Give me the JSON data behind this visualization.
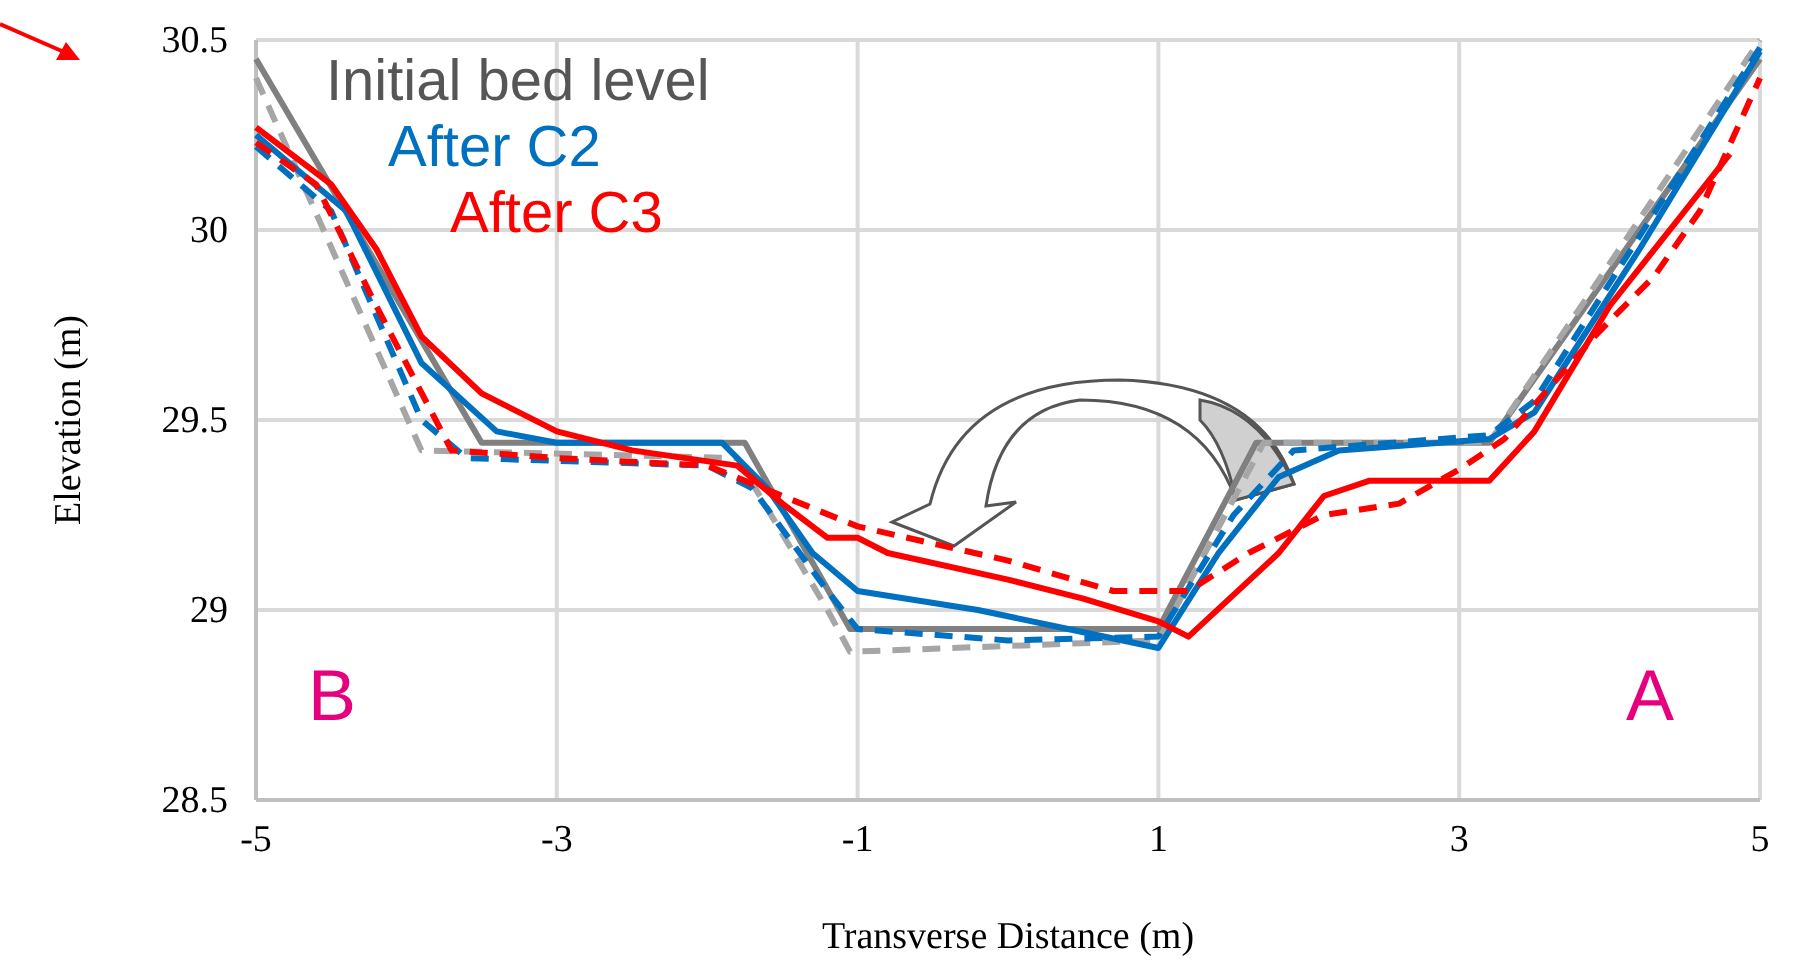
{
  "chart_data": {
    "type": "line",
    "xlabel": "Transverse Distance (m)",
    "ylabel": "Elevation (m)",
    "xlim": [
      -5,
      5
    ],
    "xticks": [
      -5,
      -3,
      -1,
      1,
      3,
      5
    ],
    "ylim": [
      28.5,
      30.5
    ],
    "yticks": [
      28.5,
      29,
      29.5,
      30,
      30.5
    ],
    "grid": true,
    "legend": "top left",
    "marker": "none",
    "series": [
      {
        "name": "Initial bed level",
        "color": "#808080",
        "line_style": "solid",
        "x": [
          -5,
          -3.5,
          -1.75,
          -1.05,
          1,
          1.65,
          3.2,
          5
        ],
        "values": [
          30.45,
          29.44,
          29.44,
          28.95,
          28.95,
          29.44,
          29.44,
          30.45
        ]
      },
      {
        "color": "#a6a6a6",
        "line_style": "dashed",
        "x": [
          -5,
          -3.9,
          -1.8,
          -1.2,
          -1.05,
          1,
          1.7,
          3.2,
          5
        ],
        "values": [
          30.4,
          29.42,
          29.4,
          29.0,
          28.89,
          28.92,
          29.44,
          29.44,
          30.5
        ]
      },
      {
        "name": "After C2",
        "color": "#0070c0",
        "line_style": "solid",
        "x": [
          -5,
          -4.4,
          -3.9,
          -3.4,
          -3,
          -1.9,
          -1.6,
          -1.3,
          -1,
          -0.2,
          0.4,
          1,
          1.4,
          1.8,
          2.2,
          3.2,
          3.5,
          4.2,
          5
        ],
        "values": [
          30.25,
          30.05,
          29.65,
          29.47,
          29.44,
          29.44,
          29.32,
          29.15,
          29.05,
          29.0,
          28.95,
          28.9,
          29.15,
          29.35,
          29.42,
          29.45,
          29.52,
          29.95,
          30.47
        ]
      },
      {
        "color": "#0070c0",
        "line_style": "dashed",
        "x": [
          -5,
          -4.5,
          -3.9,
          -3.6,
          -2,
          -1.7,
          -1.2,
          -1,
          0,
          1,
          1.5,
          1.9,
          3.2,
          3.5,
          5
        ],
        "values": [
          30.22,
          30.05,
          29.5,
          29.4,
          29.38,
          29.32,
          29.05,
          28.95,
          28.92,
          28.93,
          29.25,
          29.42,
          29.46,
          29.55,
          30.48
        ]
      },
      {
        "name": "After C3",
        "color": "#ff0000",
        "line_style": "solid",
        "x": [
          -5,
          -4.5,
          -4.2,
          -3.9,
          -3.5,
          -3,
          -2.5,
          -1.8,
          -1.5,
          -1.2,
          -1,
          -0.8,
          0,
          0.5,
          1,
          1.2,
          1.8,
          2.1,
          2.4,
          3.2,
          3.5,
          4,
          4.5,
          4.8
        ],
        "values": [
          30.27,
          30.12,
          29.95,
          29.72,
          29.57,
          29.47,
          29.42,
          29.38,
          29.28,
          29.19,
          29.19,
          29.15,
          29.08,
          29.03,
          28.97,
          28.93,
          29.15,
          29.3,
          29.34,
          29.34,
          29.47,
          29.8,
          30.05,
          30.2
        ]
      },
      {
        "color": "#ff0000",
        "line_style": "dashed",
        "x": [
          -5,
          -4.6,
          -4.2,
          -3.7,
          -3,
          -2,
          -1.5,
          -1,
          0,
          0.7,
          1.2,
          1.6,
          2.1,
          2.6,
          3,
          3.3,
          3.9,
          4.3,
          4.6,
          5
        ],
        "values": [
          30.23,
          30.12,
          29.8,
          29.42,
          29.4,
          29.38,
          29.3,
          29.22,
          29.13,
          29.05,
          29.05,
          29.15,
          29.25,
          29.28,
          29.37,
          29.45,
          29.72,
          29.88,
          30.05,
          30.4
        ]
      }
    ],
    "annotations": [
      "B",
      "A"
    ]
  }
}
